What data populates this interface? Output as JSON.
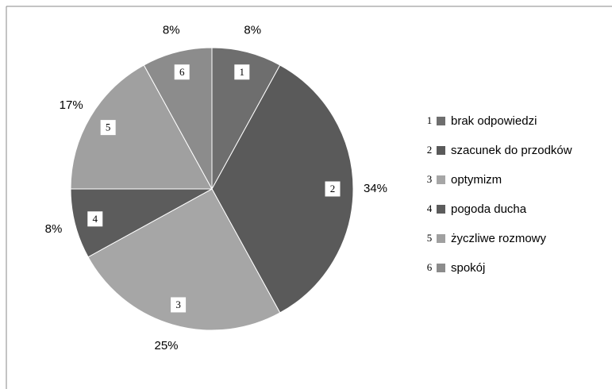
{
  "chart_data": {
    "type": "pie",
    "categories": [
      "brak odpowiedzi",
      "szacunek do przodków",
      "optymizm",
      "pogoda ducha",
      "życzliwe rozmowy",
      "spokój"
    ],
    "markers": [
      "1",
      "2",
      "3",
      "4",
      "5",
      "6"
    ],
    "values": [
      8,
      34,
      25,
      8,
      17,
      8
    ],
    "value_labels": [
      "8%",
      "34%",
      "25%",
      "8%",
      "17%",
      "8%"
    ],
    "colors": [
      "#6e6e6e",
      "#5a5a5a",
      "#a6a6a6",
      "#5c5c5c",
      "#a0a0a0",
      "#8c8c8c"
    ],
    "legend": "right"
  }
}
